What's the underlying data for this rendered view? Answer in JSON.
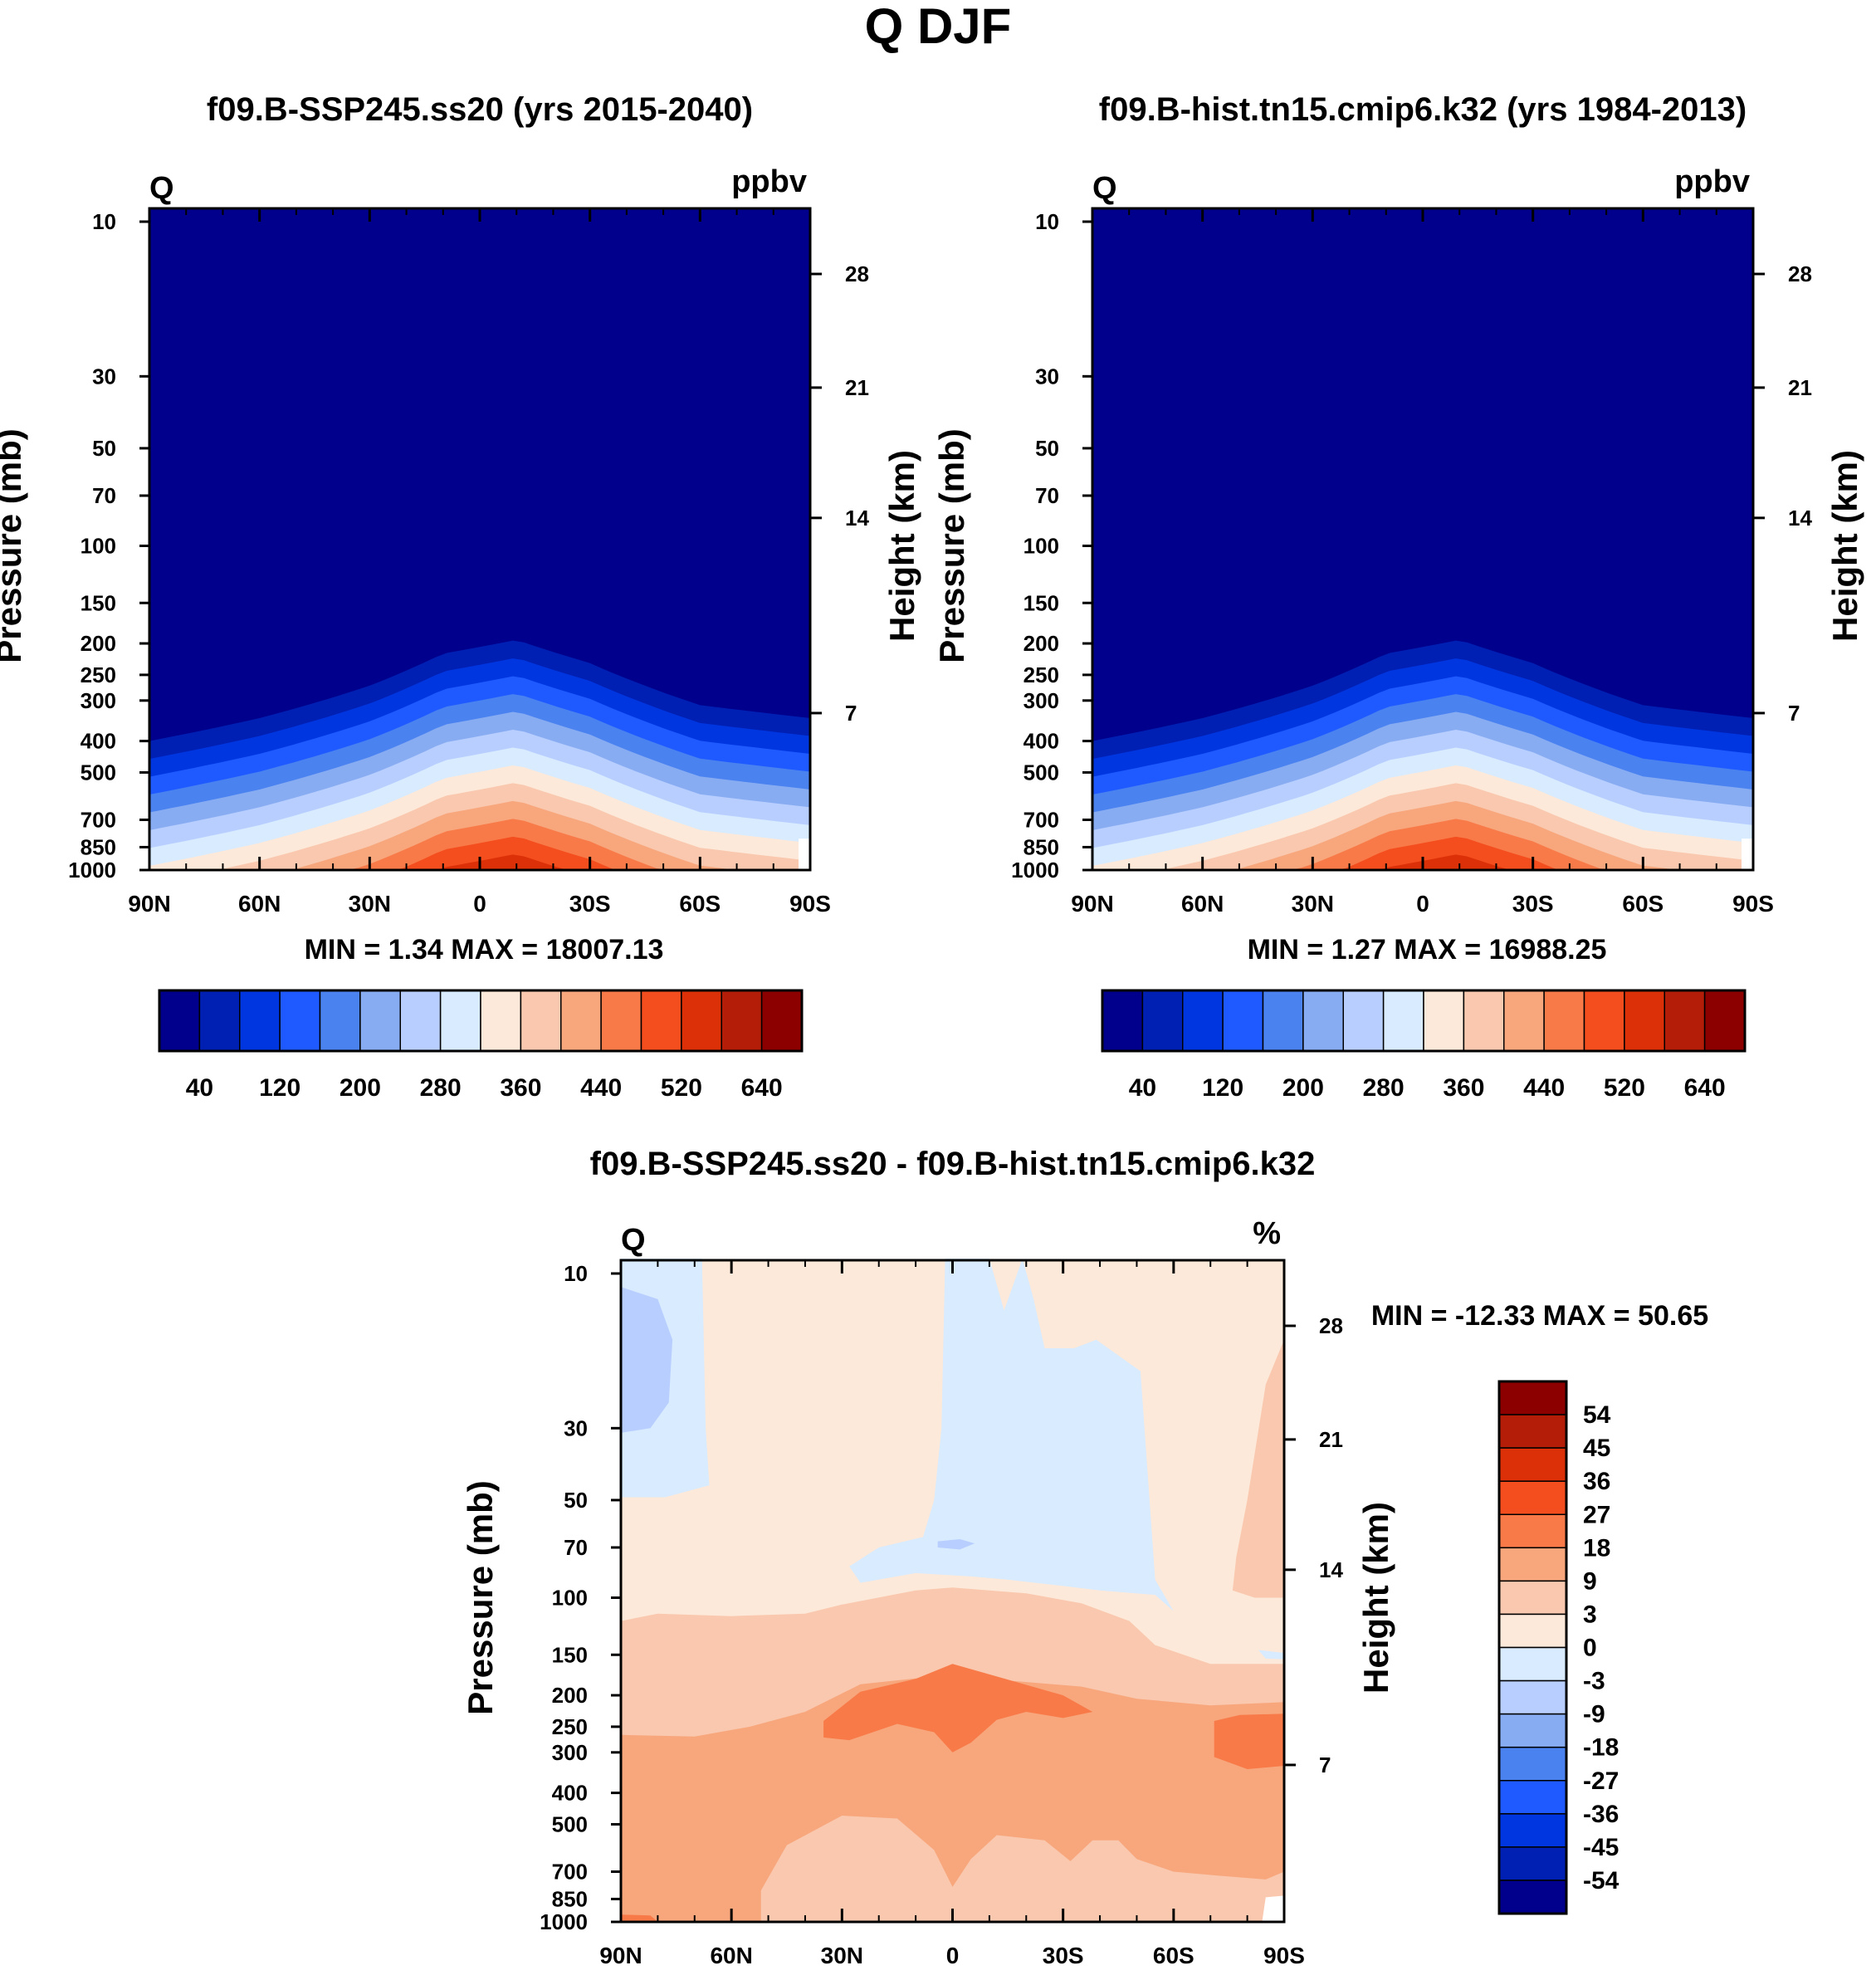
{
  "figure_title": "Q DJF",
  "chart_data": [
    {
      "type": "contour",
      "title": "f09.B-SSP245.ss20 (yrs 2015-2040)",
      "var_label": "Q",
      "units": "ppbv",
      "ylabel": "Pressure (mb)",
      "ylabel_right": "Height (km)",
      "x_ticks": [
        "90N",
        "60N",
        "30N",
        "0",
        "30S",
        "60S",
        "90S"
      ],
      "y_ticks": [
        "10",
        "30",
        "50",
        "70",
        "100",
        "150",
        "200",
        "250",
        "300",
        "400",
        "500",
        "700",
        "850",
        "1000"
      ],
      "right_ticks": [
        "28",
        "21",
        "14",
        "7"
      ],
      "stats": "MIN =   1.34  MAX = 18007.13",
      "colorbar_labels": [
        "40",
        "120",
        "200",
        "280",
        "360",
        "440",
        "520",
        "640"
      ],
      "tropopause_profile_mb": [
        {
          "lat": 90,
          "p": 400
        },
        {
          "lat": 60,
          "p": 340
        },
        {
          "lat": 30,
          "p": 270
        },
        {
          "lat": 10,
          "p": 215
        },
        {
          "lat": 0,
          "p": 205
        },
        {
          "lat": -10,
          "p": 195
        },
        {
          "lat": -30,
          "p": 230
        },
        {
          "lat": -60,
          "p": 310
        },
        {
          "lat": -90,
          "p": 340
        }
      ]
    },
    {
      "type": "contour",
      "title": "f09.B-hist.tn15.cmip6.k32 (yrs 1984-2013)",
      "var_label": "Q",
      "units": "ppbv",
      "ylabel": "Pressure (mb)",
      "ylabel_right": "Height (km)",
      "x_ticks": [
        "90N",
        "60N",
        "30N",
        "0",
        "30S",
        "60S",
        "90S"
      ],
      "y_ticks": [
        "10",
        "30",
        "50",
        "70",
        "100",
        "150",
        "200",
        "250",
        "300",
        "400",
        "500",
        "700",
        "850",
        "1000"
      ],
      "right_ticks": [
        "28",
        "21",
        "14",
        "7"
      ],
      "stats": "MIN =   1.27  MAX = 16988.25",
      "colorbar_labels": [
        "40",
        "120",
        "200",
        "280",
        "360",
        "440",
        "520",
        "640"
      ],
      "tropopause_profile_mb": [
        {
          "lat": 90,
          "p": 400
        },
        {
          "lat": 60,
          "p": 340
        },
        {
          "lat": 30,
          "p": 270
        },
        {
          "lat": 10,
          "p": 215
        },
        {
          "lat": 0,
          "p": 205
        },
        {
          "lat": -10,
          "p": 195
        },
        {
          "lat": -30,
          "p": 230
        },
        {
          "lat": -60,
          "p": 310
        },
        {
          "lat": -90,
          "p": 340
        }
      ]
    },
    {
      "type": "contour",
      "title": "f09.B-SSP245.ss20 - f09.B-hist.tn15.cmip6.k32",
      "var_label": "Q",
      "units": "%",
      "ylabel": "Pressure (mb)",
      "ylabel_right": "Height (km)",
      "x_ticks": [
        "90N",
        "60N",
        "30N",
        "0",
        "30S",
        "60S",
        "90S"
      ],
      "y_ticks": [
        "10",
        "30",
        "50",
        "70",
        "100",
        "150",
        "200",
        "250",
        "300",
        "400",
        "500",
        "700",
        "850",
        "1000"
      ],
      "right_ticks": [
        "28",
        "21",
        "14",
        "7"
      ],
      "stats": "MIN = -12.33  MAX =  50.65",
      "colorbar_labels": [
        "54",
        "45",
        "36",
        "27",
        "18",
        "9",
        "3",
        "0",
        "-3",
        "-9",
        "-18",
        "-27",
        "-36",
        "-45",
        "-54"
      ]
    }
  ],
  "colors": {
    "sequential": [
      "#00008c",
      "#0020b4",
      "#0036e0",
      "#1e5aff",
      "#4a82f0",
      "#88acf2",
      "#b8ceff",
      "#d8ebff",
      "#fde9d9",
      "#f9c8ae",
      "#f8a67c",
      "#f87a48",
      "#f44d1e",
      "#dc3008",
      "#b41e08",
      "#8c0000"
    ],
    "diverging": [
      "#8c0000",
      "#b41e08",
      "#dc3008",
      "#f44d1e",
      "#f87a48",
      "#f8a67c",
      "#f9c8ae",
      "#fde9d9",
      "#d8ebff",
      "#b8ceff",
      "#88acf2",
      "#4a82f0",
      "#1e5aff",
      "#0036e0",
      "#0020b4",
      "#00008c"
    ]
  }
}
